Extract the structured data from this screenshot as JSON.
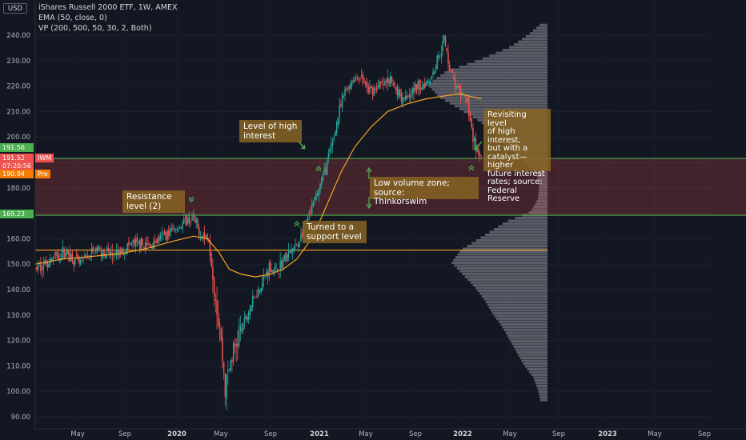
{
  "header": {
    "currency": "USD",
    "title": "iShares Russell 2000 ETF, 1W, AMEX",
    "indicator_ema": "EMA (50, close, 0)",
    "indicator_vp": "VP (200, 500, 50, 30, 2, Both)"
  },
  "price_tags": {
    "upper_line": "191.56",
    "last_price": "191.52",
    "symbol": "IWM",
    "countdown": "07:20:56",
    "premarket_price": "190.94",
    "premarket_label": "Pre",
    "lower_line": "169.23"
  },
  "annotations": [
    {
      "id": "resistance",
      "text": "Resistance\nlevel (2)"
    },
    {
      "id": "high-interest",
      "text": "Level of high\ninterest"
    },
    {
      "id": "support",
      "text": "Turned to a\nsupport level"
    },
    {
      "id": "low-volume",
      "text": "Low volume zone; source:\nThinkorswim"
    },
    {
      "id": "revisiting",
      "text": "Revisiting level\nof high interest,\nbut with a\ncatalyst—higher\nfuture interest\nrates; source:\nFederal Reserve"
    }
  ],
  "colors": {
    "background": "#131722",
    "up_candle": "#26a69a",
    "down_candle": "#ef5350",
    "ema": "#f5a623",
    "support_line": "#f5a623",
    "zone_line": "#4caf50",
    "zone_fill": "#ef5350",
    "volume_profile": "#9598a1",
    "annotation_box": "#876423",
    "arrow": "#4caf50"
  },
  "chart_data": {
    "type": "candlestick",
    "symbol": "IWM",
    "timeframe": "1W",
    "x_tick_labels": [
      "May",
      "Sep",
      "2020",
      "May",
      "Sep",
      "2021",
      "May",
      "Sep",
      "2022",
      "May",
      "Sep",
      "2023",
      "May",
      "Sep"
    ],
    "y_tick_labels": [
      "90.00",
      "100.00",
      "110.00",
      "120.00",
      "130.00",
      "140.00",
      "150.00",
      "160.00",
      "170.00",
      "180.00",
      "190.00",
      "200.00",
      "210.00",
      "220.00",
      "230.00",
      "240.00"
    ],
    "ylim": [
      88,
      248
    ],
    "horizontal_levels": {
      "zone_top": 191.56,
      "zone_bottom": 169.23,
      "support": 155.5
    },
    "price_path": [
      [
        0,
        148
      ],
      [
        12,
        152
      ],
      [
        22,
        155
      ],
      [
        32,
        150
      ],
      [
        45,
        156
      ],
      [
        58,
        153
      ],
      [
        70,
        158
      ],
      [
        82,
        157
      ],
      [
        90,
        160
      ],
      [
        98,
        163
      ],
      [
        108,
        166
      ],
      [
        114,
        168
      ],
      [
        120,
        162
      ],
      [
        126,
        160
      ],
      [
        130,
        142
      ],
      [
        134,
        125
      ],
      [
        138,
        101
      ],
      [
        142,
        112
      ],
      [
        148,
        122
      ],
      [
        154,
        130
      ],
      [
        160,
        138
      ],
      [
        166,
        144
      ],
      [
        170,
        149
      ],
      [
        175,
        147
      ],
      [
        181,
        152
      ],
      [
        186,
        155
      ],
      [
        191,
        158
      ],
      [
        195,
        164
      ],
      [
        199,
        169
      ],
      [
        205,
        178
      ],
      [
        211,
        188
      ],
      [
        216,
        198
      ],
      [
        220,
        208
      ],
      [
        225,
        218
      ],
      [
        230,
        222
      ],
      [
        236,
        224
      ],
      [
        242,
        218
      ],
      [
        250,
        220
      ],
      [
        258,
        222
      ],
      [
        266,
        216
      ],
      [
        274,
        218
      ],
      [
        282,
        221
      ],
      [
        288,
        224
      ],
      [
        293,
        232
      ],
      [
        297,
        238
      ],
      [
        301,
        228
      ],
      [
        305,
        220
      ],
      [
        310,
        216
      ],
      [
        314,
        214
      ],
      [
        318,
        200
      ],
      [
        322,
        192
      ],
      [
        324,
        191.5
      ]
    ],
    "ema_path": [
      [
        0,
        150
      ],
      [
        20,
        152
      ],
      [
        40,
        153
      ],
      [
        60,
        154
      ],
      [
        80,
        156
      ],
      [
        100,
        159
      ],
      [
        115,
        161
      ],
      [
        125,
        160
      ],
      [
        133,
        155
      ],
      [
        141,
        148
      ],
      [
        150,
        146
      ],
      [
        160,
        145
      ],
      [
        170,
        146
      ],
      [
        180,
        148
      ],
      [
        190,
        152
      ],
      [
        198,
        158
      ],
      [
        206,
        166
      ],
      [
        214,
        176
      ],
      [
        222,
        186
      ],
      [
        232,
        196
      ],
      [
        244,
        204
      ],
      [
        256,
        210
      ],
      [
        270,
        213
      ],
      [
        284,
        215
      ],
      [
        296,
        216
      ],
      [
        308,
        217
      ],
      [
        316,
        216
      ],
      [
        324,
        215
      ]
    ],
    "volume_profile": [
      [
        96,
        0.06
      ],
      [
        100,
        0.08
      ],
      [
        105,
        0.12
      ],
      [
        110,
        0.2
      ],
      [
        115,
        0.26
      ],
      [
        120,
        0.32
      ],
      [
        125,
        0.38
      ],
      [
        130,
        0.46
      ],
      [
        135,
        0.52
      ],
      [
        140,
        0.6
      ],
      [
        145,
        0.7
      ],
      [
        150,
        0.8
      ],
      [
        155,
        0.72
      ],
      [
        160,
        0.55
      ],
      [
        163,
        0.45
      ],
      [
        166,
        0.35
      ],
      [
        170,
        0.14
      ],
      [
        175,
        0.08
      ],
      [
        180,
        0.07
      ],
      [
        185,
        0.09
      ],
      [
        190,
        0.2
      ],
      [
        195,
        0.32
      ],
      [
        200,
        0.42
      ],
      [
        205,
        0.55
      ],
      [
        210,
        0.72
      ],
      [
        215,
        0.9
      ],
      [
        220,
        1.0
      ],
      [
        225,
        0.85
      ],
      [
        230,
        0.55
      ],
      [
        235,
        0.3
      ],
      [
        240,
        0.15
      ],
      [
        244,
        0.05
      ]
    ]
  }
}
